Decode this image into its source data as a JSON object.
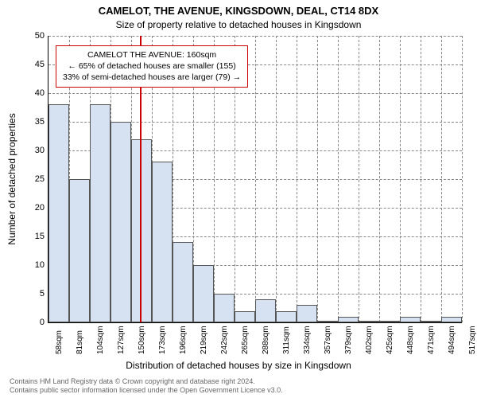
{
  "title": "CAMELOT, THE AVENUE, KINGSDOWN, DEAL, CT14 8DX",
  "subtitle": "Size of property relative to detached houses in Kingsdown",
  "ylabel": "Number of detached properties",
  "xlabel": "Distribution of detached houses by size in Kingsdown",
  "chart": {
    "type": "histogram",
    "background_color": "#ffffff",
    "grid_color": "#888888",
    "grid_dash": true,
    "bar_fill": "#d6e2f2",
    "bar_border": "#555555",
    "bar_border_width": 1,
    "marker_color": "#cc0000",
    "marker_width": 2,
    "marker_sqm": 160,
    "title_fontsize": 13,
    "subtitle_fontsize": 12,
    "axis_label_fontsize": 12,
    "tick_fontsize": 11,
    "ylim": [
      0,
      50
    ],
    "ytick_step": 5,
    "x_start": 58,
    "x_step": 23,
    "x_unit": "sqm",
    "x_labels": [
      "58sqm",
      "81sqm",
      "104sqm",
      "127sqm",
      "150sqm",
      "173sqm",
      "196sqm",
      "219sqm",
      "242sqm",
      "265sqm",
      "288sqm",
      "311sqm",
      "334sqm",
      "357sqm",
      "379sqm",
      "402sqm",
      "425sqm",
      "448sqm",
      "471sqm",
      "494sqm",
      "517sqm"
    ],
    "values": [
      38,
      25,
      38,
      35,
      32,
      28,
      14,
      10,
      5,
      2,
      4,
      2,
      3,
      0,
      1,
      0,
      0,
      1,
      0,
      1
    ]
  },
  "annotation": {
    "border_color": "#cc0000",
    "background_color": "#ffffff",
    "fontsize": 10.5,
    "line1": "CAMELOT THE AVENUE: 160sqm",
    "line2": "← 65% of detached houses are smaller (155)",
    "line3": "33% of semi-detached houses are larger (79) →"
  },
  "footer": {
    "line1": "Contains HM Land Registry data © Crown copyright and database right 2024.",
    "line2": "Contains public sector information licensed under the Open Government Licence v3.0.",
    "color": "#666666",
    "fontsize": 9
  }
}
